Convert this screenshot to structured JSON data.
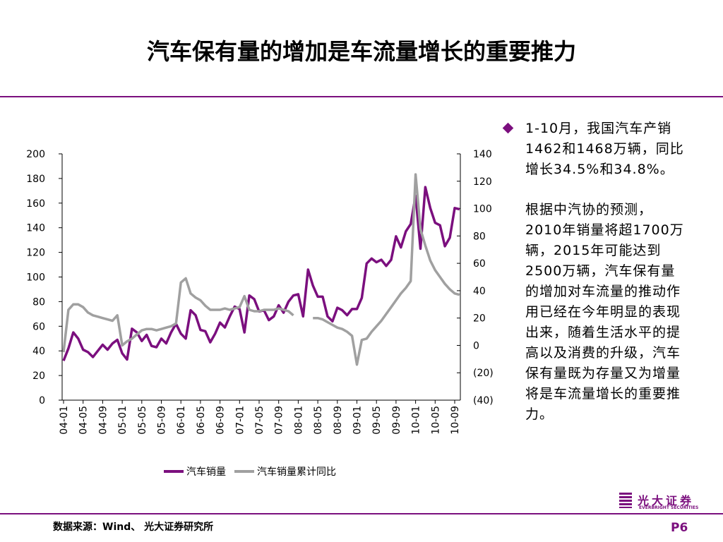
{
  "title": "汽车保有量的增加是车流量增长的重要推力",
  "chart_data": {
    "type": "line",
    "categories": [
      "04-01",
      null,
      null,
      null,
      "04-05",
      null,
      null,
      null,
      "04-09",
      null,
      null,
      null,
      "05-01",
      null,
      null,
      null,
      "05-05",
      null,
      null,
      null,
      "05-09",
      null,
      null,
      null,
      "06-01",
      null,
      null,
      null,
      "06-05",
      null,
      null,
      null,
      "06-09",
      null,
      null,
      null,
      "07-01",
      null,
      null,
      null,
      "07-05",
      null,
      null,
      null,
      "07-09",
      null,
      null,
      null,
      "08-01",
      null,
      null,
      null,
      "08-05",
      null,
      null,
      null,
      "08-09",
      null,
      null,
      null,
      "09-01",
      null,
      null,
      null,
      "09-05",
      null,
      null,
      null,
      "09-09",
      null,
      null,
      null,
      "10-01",
      null,
      null,
      null,
      "10-05",
      null,
      null,
      null,
      "10-09",
      null
    ],
    "series": [
      {
        "name": "汽车销量",
        "color": "#7b0f7e",
        "values": [
          32,
          42,
          55,
          50,
          41,
          39,
          35,
          40,
          45,
          41,
          46,
          49,
          38,
          33,
          58,
          55,
          48,
          53,
          44,
          43,
          50,
          46,
          55,
          62,
          54,
          50,
          73,
          69,
          57,
          56,
          47,
          54,
          63,
          59,
          68,
          76,
          74,
          55,
          85,
          82,
          72,
          73,
          65,
          68,
          77,
          71,
          80,
          85,
          86,
          68,
          106,
          93,
          84,
          84,
          68,
          64,
          75,
          73,
          69,
          74,
          74,
          83,
          111,
          115,
          112,
          114,
          109,
          114,
          133,
          124,
          137,
          143,
          166,
          123,
          173,
          156,
          144,
          142,
          125,
          132,
          156,
          155
        ]
      },
      {
        "name": "汽车销量累计同比",
        "color": "#a0a0a0",
        "axis": "y2",
        "values": [
          -5,
          26,
          30,
          30,
          28,
          24,
          22,
          21,
          20,
          19,
          18,
          22,
          0,
          3,
          5,
          8,
          11,
          12,
          12,
          11,
          12,
          13,
          14,
          16,
          46,
          49,
          38,
          35,
          33,
          29,
          26,
          26,
          26,
          27,
          26,
          27,
          28,
          36,
          26,
          25,
          25,
          26,
          26,
          26,
          27,
          26,
          25,
          22,
          null,
          null,
          null,
          20,
          20,
          19,
          17,
          15,
          13,
          12,
          10,
          7,
          -14,
          4,
          5,
          10,
          14,
          18,
          23,
          28,
          33,
          38,
          42,
          47,
          125,
          85,
          73,
          62,
          55,
          50,
          45,
          41,
          38,
          37
        ]
      }
    ],
    "ylim": [
      0,
      200
    ],
    "yticks": [
      0,
      20,
      40,
      60,
      80,
      100,
      120,
      140,
      160,
      180,
      200
    ],
    "y2lim": [
      -40,
      140
    ],
    "y2ticks": [
      {
        "value": -40,
        "label": "(40)"
      },
      {
        "value": -20,
        "label": "(20)"
      },
      0,
      20,
      40,
      60,
      80,
      100,
      120,
      140
    ],
    "legend": "bottom"
  },
  "bullet": "1-10月，我国汽车产销1462和1468万辆，同比增长34.5%和34.8%。",
  "paragraph": "根据中汽协的预测，2010年销量将超1700万辆，2015年可能达到2500万辆，汽车保有量的增加对车流量的推动作用已经在今年明显的表现出来，随着生活水平的提高以及消费的升级，汽车保有量既为存量又为增量将是车流量增长的重要推力。",
  "source": "数据来源：Wind、 光大证券研究所",
  "page": "P6",
  "logo": {
    "name": "光大证券",
    "english": "EVERBRIGHT SECURITIES"
  }
}
